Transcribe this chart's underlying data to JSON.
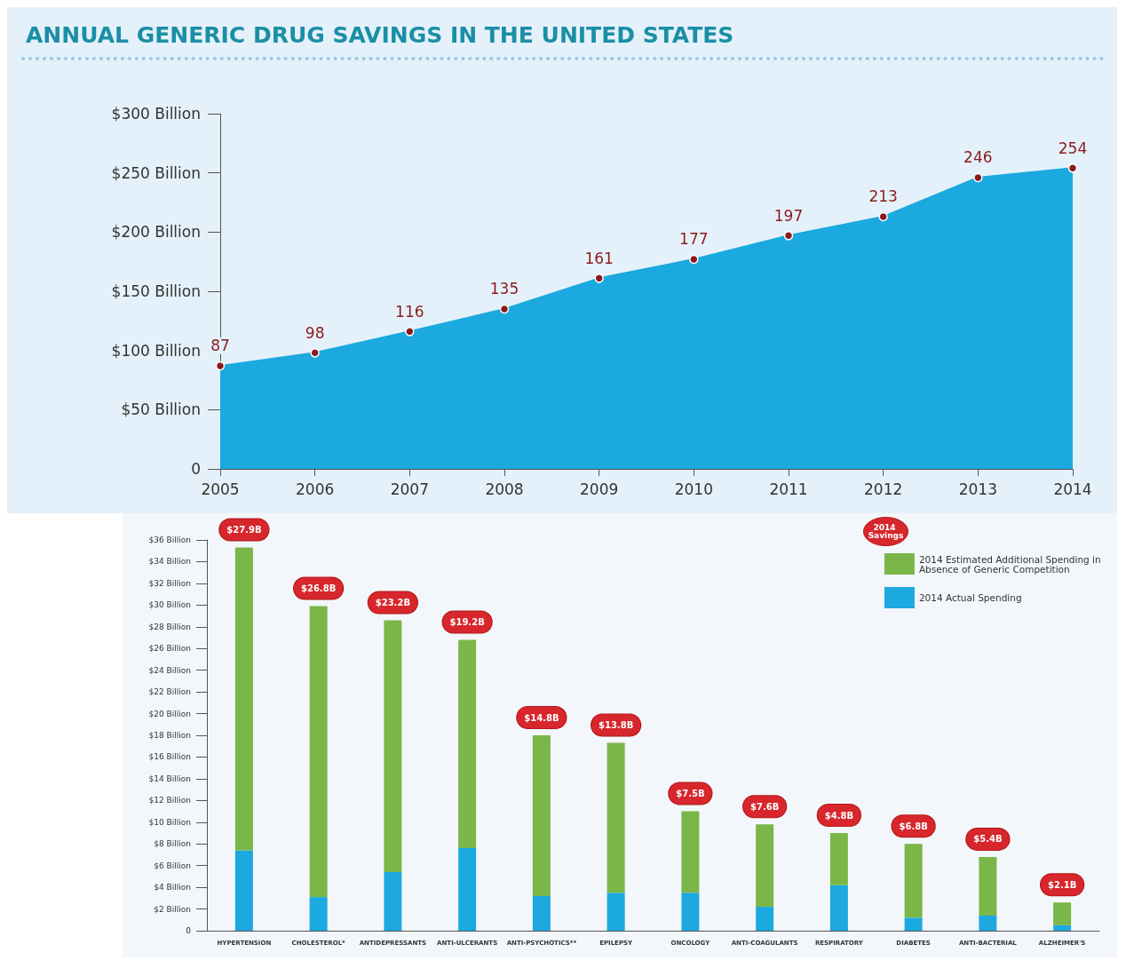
{
  "chart_data": [
    {
      "type": "area",
      "title": "ANNUAL GENERIC DRUG SAVINGS IN THE UNITED STATES",
      "categories": [
        "2005",
        "2006",
        "2007",
        "2008",
        "2009",
        "2010",
        "2011",
        "2012",
        "2013",
        "2014"
      ],
      "series": [
        {
          "color": "#1ba9df",
          "values": [
            87,
            98,
            116,
            135,
            161,
            177,
            197,
            213,
            246,
            254
          ]
        }
      ],
      "data_labels": true,
      "ylim": [
        0,
        300
      ],
      "yticks": [
        {
          "value": 0,
          "label": "0"
        },
        {
          "value": 50,
          "label": "$50 Billion"
        },
        {
          "value": 100,
          "label": "$100 Billion"
        },
        {
          "value": 150,
          "label": "$150 Billion"
        },
        {
          "value": 200,
          "label": "$200 Billion"
        },
        {
          "value": 250,
          "label": "$250 Billion"
        },
        {
          "value": 300,
          "label": "$300 Billion"
        }
      ],
      "marker": "circle",
      "grid": false,
      "legend": false
    },
    {
      "type": "bar",
      "stacked": true,
      "categories": [
        "HYPERTENSION",
        "CHOLESTEROL*",
        "ANTIDEPRESSANTS",
        "ANTI-ULCERANTS",
        "ANTI-PSYCHOTICS**",
        "EPILEPSY",
        "ONCOLOGY",
        "ANTI-COAGULANTS",
        "RESPIRATORY",
        "DIABETES",
        "ANTI-BACTERIAL",
        "ALZHEIMER'S"
      ],
      "series": [
        {
          "name": "2014 Actual Spending",
          "color": "#1ba9df",
          "values": [
            7.4,
            3.1,
            5.4,
            7.6,
            3.2,
            3.5,
            3.5,
            2.2,
            4.2,
            1.2,
            1.4,
            0.5
          ]
        },
        {
          "name": "2014 Estimated Additional Spending in Absence of Generic Competition",
          "color": "#7ab648",
          "values": [
            27.9,
            26.8,
            23.2,
            19.2,
            14.8,
            13.8,
            7.5,
            7.6,
            4.8,
            6.8,
            5.4,
            2.1
          ],
          "value_labels": [
            "$27.9B",
            "$26.8B",
            "$23.2B",
            "$19.2B",
            "$14.8B",
            "$13.8B",
            "$7.5B",
            "$7.6B",
            "$4.8B",
            "$6.8B",
            "$5.4B",
            "$2.1B"
          ]
        }
      ],
      "ylim": [
        0,
        36
      ],
      "yticks": [
        {
          "value": 0,
          "label": "0"
        },
        {
          "value": 2,
          "label": "$2 Billion"
        },
        {
          "value": 4,
          "label": "$4 Billion"
        },
        {
          "value": 6,
          "label": "$6 Billion"
        },
        {
          "value": 8,
          "label": "$8 Billion"
        },
        {
          "value": 10,
          "label": "$10 Billion"
        },
        {
          "value": 12,
          "label": "$12 Billion"
        },
        {
          "value": 14,
          "label": "$14 Billion"
        },
        {
          "value": 16,
          "label": "$16 Billion"
        },
        {
          "value": 18,
          "label": "$18 Billion"
        },
        {
          "value": 20,
          "label": "$20 Billion"
        },
        {
          "value": 22,
          "label": "$22 Billion"
        },
        {
          "value": 24,
          "label": "$24 Billion"
        },
        {
          "value": 26,
          "label": "$26 Billion"
        },
        {
          "value": 28,
          "label": "$28 Billion"
        },
        {
          "value": 30,
          "label": "$30 Billion"
        },
        {
          "value": 32,
          "label": "$32 Billion"
        },
        {
          "value": 34,
          "label": "$34 Billion"
        },
        {
          "value": 36,
          "label": "$36 Billion"
        }
      ],
      "annotations": [
        "2014 Savings"
      ],
      "grid": false,
      "legend": "top right"
    }
  ]
}
